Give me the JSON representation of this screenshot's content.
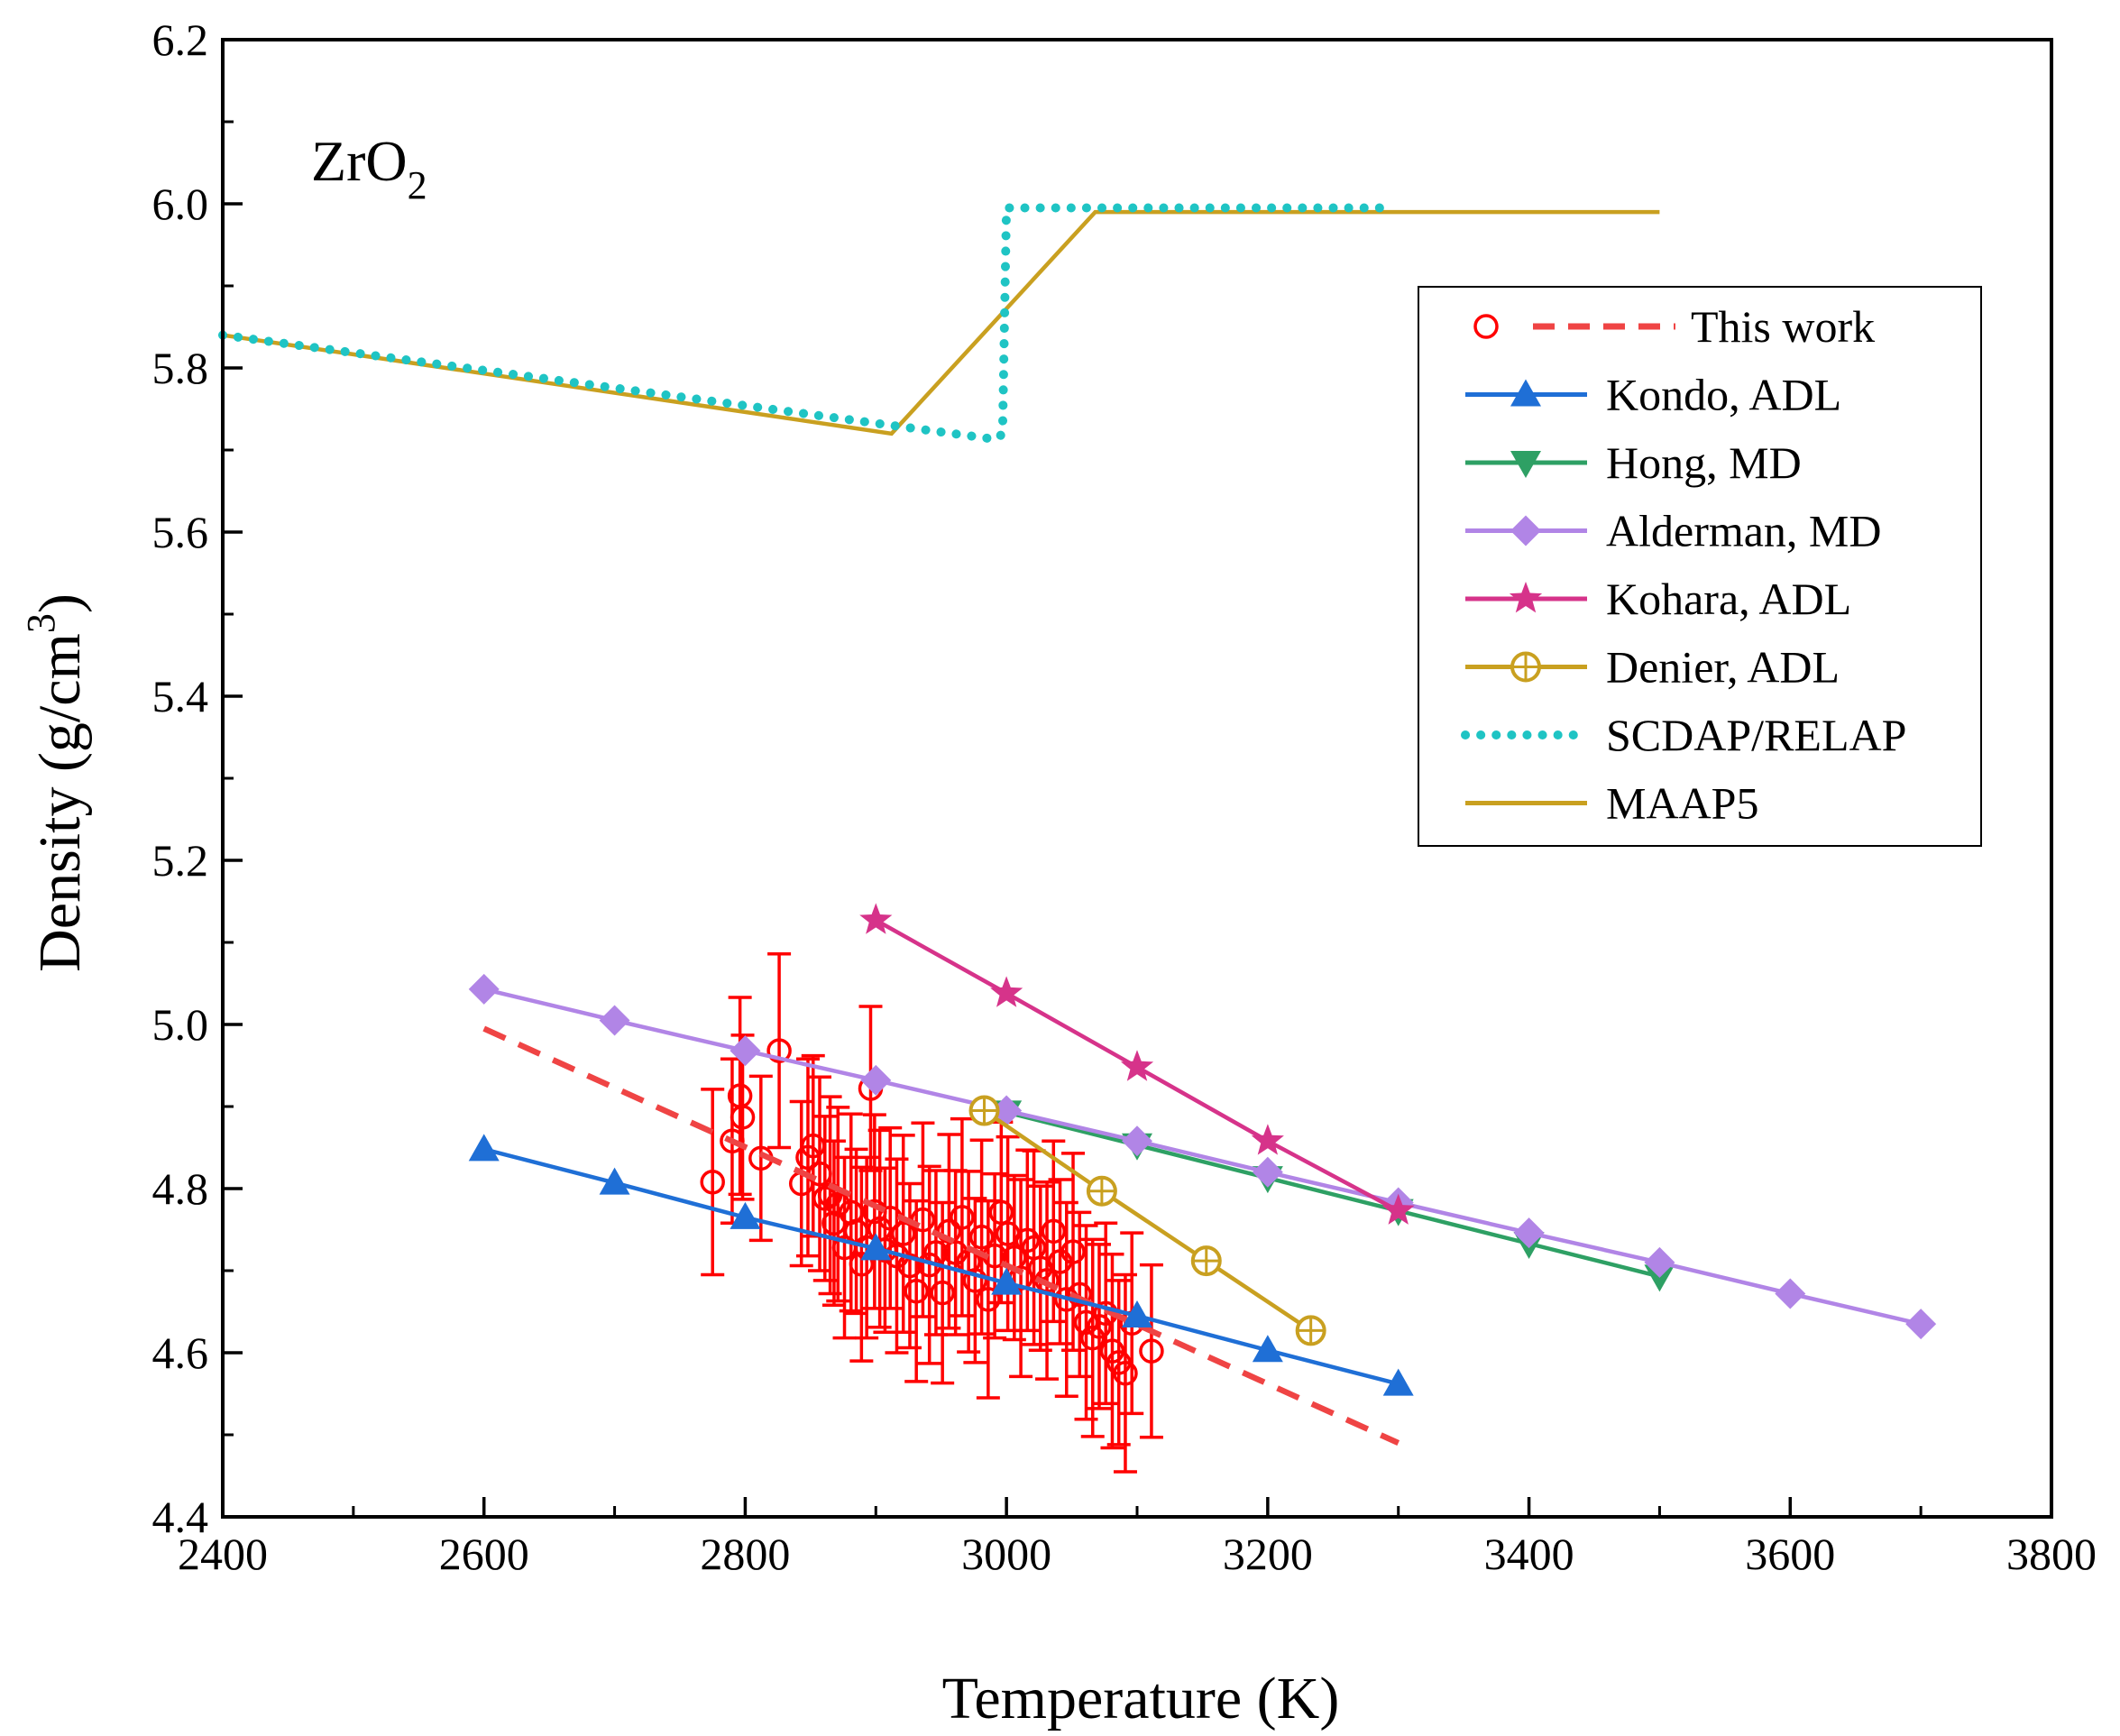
{
  "chart_data": {
    "type": "line",
    "title": "",
    "xlabel": "Temperature (K)",
    "ylabel": "Density (g/cm3)",
    "ylabel_parts": {
      "main": "Density (g/cm",
      "sup": "3",
      "close": ")"
    },
    "annotation": {
      "main": "ZrO",
      "sub": "2"
    },
    "xlim": [
      2400,
      3800
    ],
    "ylim": [
      4.4,
      6.2
    ],
    "xticks": [
      "2400",
      "2600",
      "2800",
      "3000",
      "3200",
      "3400",
      "3600",
      "3800"
    ],
    "yticks": [
      "4.4",
      "4.6",
      "4.8",
      "5.0",
      "5.2",
      "5.4",
      "5.6",
      "5.8",
      "6.0",
      "6.2"
    ],
    "legend_position": "top-right",
    "series": [
      {
        "name": "This work",
        "kind": "fit",
        "color": "#ef4444",
        "x": [
          2600,
          3300
        ],
        "y": [
          4.995,
          4.49
        ]
      },
      {
        "name": "Kondo, ADL",
        "kind": "marker-line",
        "marker": "triangle-up",
        "color": "#1f6fd6",
        "x": [
          2600,
          2700,
          2800,
          2900,
          3000,
          3100,
          3200,
          3300
        ],
        "y": [
          4.848,
          4.807,
          4.765,
          4.727,
          4.685,
          4.645,
          4.603,
          4.562
        ]
      },
      {
        "name": "Hong, MD",
        "kind": "marker-line",
        "marker": "triangle-down",
        "color": "#2ea064",
        "x": [
          3000,
          3100,
          3200,
          3300,
          3400,
          3500
        ],
        "y": [
          4.893,
          4.853,
          4.813,
          4.773,
          4.733,
          4.693
        ]
      },
      {
        "name": "Alderman, MD",
        "kind": "marker-line",
        "marker": "diamond",
        "color": "#b185e6",
        "x": [
          2600,
          2700,
          2800,
          2900,
          3000,
          3100,
          3200,
          3300,
          3400,
          3500,
          3600,
          3700
        ],
        "y": [
          5.043,
          5.005,
          4.968,
          4.932,
          4.895,
          4.858,
          4.82,
          4.783,
          4.746,
          4.71,
          4.672,
          4.635
        ]
      },
      {
        "name": "Kohara, ADL",
        "kind": "marker-line",
        "marker": "star",
        "color": "#d6338a",
        "x": [
          2900,
          3000,
          3100,
          3200,
          3300
        ],
        "y": [
          5.127,
          5.038,
          4.948,
          4.858,
          4.773
        ]
      },
      {
        "name": "Denier, ADL",
        "kind": "marker-line",
        "marker": "crossed-circle",
        "color": "#c9a020",
        "x": [
          2983,
          3073,
          3153,
          3233
        ],
        "y": [
          4.895,
          4.797,
          4.712,
          4.627
        ]
      },
      {
        "name": "SCDAP/RELAP",
        "kind": "dotted",
        "color": "#1fc4c4",
        "x": [
          2400,
          2912,
          2992,
          2997,
          3000,
          3290
        ],
        "y": [
          5.84,
          5.73,
          5.713,
          5.72,
          5.995,
          5.995
        ]
      },
      {
        "name": "MAAP5",
        "kind": "solid",
        "color": "#c9a020",
        "x": [
          2400,
          2912,
          3068,
          3500
        ],
        "y": [
          5.84,
          5.72,
          5.99,
          5.99
        ]
      }
    ],
    "scatter": {
      "name": "This work",
      "color": "#ff0000",
      "x": [
        2775,
        2790,
        2796,
        2798,
        2812,
        2826,
        2843,
        2848,
        2852,
        2857,
        2861,
        2865,
        2868,
        2871,
        2876,
        2881,
        2885,
        2889,
        2893,
        2896,
        2899,
        2903,
        2907,
        2911,
        2916,
        2921,
        2926,
        2931,
        2936,
        2941,
        2946,
        2951,
        2956,
        2961,
        2966,
        2971,
        2976,
        2981,
        2986,
        2991,
        2996,
        3001,
        3006,
        3011,
        3016,
        3021,
        3026,
        3031,
        3036,
        3041,
        3046,
        3051,
        3056,
        3061,
        3066,
        3071,
        3076,
        3081,
        3086,
        3091,
        3096,
        3111
      ],
      "y": [
        4.808,
        4.858,
        4.913,
        4.887,
        4.837,
        4.968,
        4.806,
        4.838,
        4.852,
        4.818,
        4.788,
        4.792,
        4.758,
        4.781,
        4.728,
        4.771,
        4.748,
        4.708,
        4.728,
        4.922,
        4.772,
        4.751,
        4.725,
        4.764,
        4.718,
        4.745,
        4.706,
        4.675,
        4.762,
        4.707,
        4.722,
        4.673,
        4.748,
        4.722,
        4.765,
        4.711,
        4.688,
        4.741,
        4.665,
        4.718,
        4.771,
        4.745,
        4.716,
        4.691,
        4.737,
        4.728,
        4.703,
        4.688,
        4.748,
        4.711,
        4.665,
        4.723,
        4.671,
        4.637,
        4.618,
        4.632,
        4.648,
        4.602,
        4.588,
        4.575,
        4.636,
        4.602
      ],
      "err": [
        0.113,
        0.1,
        0.12,
        0.1,
        0.1,
        0.118,
        0.1,
        0.12,
        0.11,
        0.118,
        0.1,
        0.12,
        0.1,
        0.118,
        0.11,
        0.12,
        0.1,
        0.118,
        0.11,
        0.1,
        0.118,
        0.12,
        0.1,
        0.11,
        0.118,
        0.12,
        0.1,
        0.11,
        0.118,
        0.12,
        0.1,
        0.11,
        0.118,
        0.1,
        0.12,
        0.11,
        0.1,
        0.118,
        0.12,
        0.1,
        0.11,
        0.118,
        0.1,
        0.12,
        0.11,
        0.118,
        0.1,
        0.12,
        0.11,
        0.1,
        0.118,
        0.12,
        0.1,
        0.118,
        0.12,
        0.1,
        0.11,
        0.118,
        0.1,
        0.12,
        0.11,
        0.105
      ]
    }
  }
}
